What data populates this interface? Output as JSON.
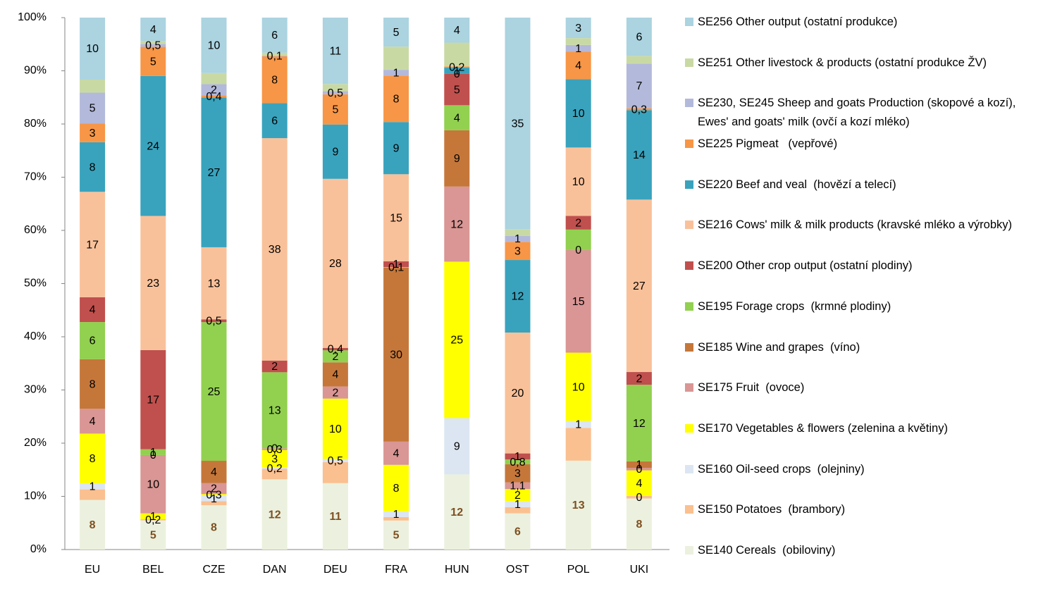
{
  "chart_data": {
    "type": "bar",
    "stacking": "percent",
    "grid": false,
    "categories": [
      "EU",
      "BEL",
      "CZE",
      "DAN",
      "DEU",
      "FRA",
      "HUN",
      "OST",
      "POL",
      "UKI"
    ],
    "ylim": [
      0,
      100
    ],
    "yticks": [
      {
        "value": 0,
        "label": "0%"
      },
      {
        "value": 10,
        "label": "10%"
      },
      {
        "value": 20,
        "label": "20%"
      },
      {
        "value": 30,
        "label": "30%"
      },
      {
        "value": 40,
        "label": "40%"
      },
      {
        "value": 50,
        "label": "50%"
      },
      {
        "value": 60,
        "label": "60%"
      },
      {
        "value": 70,
        "label": "70%"
      },
      {
        "value": 80,
        "label": "80%"
      },
      {
        "value": 90,
        "label": "90%"
      },
      {
        "value": 100,
        "label": "100%"
      }
    ],
    "legend": "right",
    "series": [
      {
        "name": "SE140 Cereals  (obiloviny)",
        "color": "#ebf1de",
        "values": [
          8,
          5,
          8,
          12,
          11,
          5,
          12,
          6,
          13,
          8
        ],
        "value_labels": [
          "8",
          "5",
          "8",
          "12",
          "11",
          "5",
          "12",
          "6",
          "13",
          "8"
        ]
      },
      {
        "name": "SE150 Potatoes  (brambory)",
        "color": "#fac090",
        "values": [
          1.7,
          0.2,
          0.7,
          1.8,
          3.5,
          0.6,
          0,
          1,
          4.8,
          0.4
        ],
        "value_labels": [
          null,
          "0,2",
          null,
          null,
          null,
          null,
          null,
          null,
          null,
          "0"
        ]
      },
      {
        "name": "SE160 Oil-seed crops  (olejniny)",
        "color": "#dce6f2",
        "values": [
          1,
          0,
          1,
          0.2,
          0.5,
          1,
          9,
          1,
          1,
          0
        ],
        "value_labels": [
          "1",
          null,
          "1",
          "0,2",
          "0,5",
          "1",
          "9",
          "1",
          "1",
          null
        ]
      },
      {
        "name": "SE170 Vegetables & flowers (zelenina a květiny)",
        "color": "#ffff00",
        "values": [
          8,
          1,
          0.3,
          3,
          10,
          8,
          25,
          2,
          10,
          4
        ],
        "value_labels": [
          "8",
          "1",
          "0,3",
          "3",
          "10",
          "8",
          "25",
          "2",
          "10",
          "4"
        ]
      },
      {
        "name": "SE175 Fruit  (ovoce)",
        "color": "#d99694",
        "values": [
          4,
          10,
          2,
          0.3,
          2,
          4,
          12,
          1.1,
          15,
          0.4
        ],
        "value_labels": [
          "4",
          "10",
          "2",
          "0,3",
          "2",
          "4",
          "12",
          "1,1",
          "15",
          "0"
        ]
      },
      {
        "name": "SE185 Wine and grapes  (víno)",
        "color": "#c5773a",
        "values": [
          8,
          0,
          4,
          0,
          4,
          30,
          9,
          3,
          0,
          1
        ],
        "value_labels": [
          "8",
          "0",
          "4",
          "0",
          "4",
          "30",
          "9",
          "3",
          "0",
          "1"
        ]
      },
      {
        "name": "SE195 Forage crops  (krmné plodiny)",
        "color": "#92d050",
        "values": [
          6,
          1,
          25,
          13,
          2,
          0.1,
          4,
          0.8,
          3,
          12
        ],
        "value_labels": [
          "6",
          "1",
          "25",
          "13",
          "2",
          "0,1",
          "4",
          "0,8",
          null,
          "12"
        ]
      },
      {
        "name": "SE200 Other crop output (ostatní plodiny)",
        "color": "#c0504d",
        "values": [
          4,
          17,
          0.5,
          2,
          0.4,
          1,
          5,
          1,
          2,
          2
        ],
        "value_labels": [
          "4",
          "17",
          "0,5",
          "2",
          "0,4",
          "1",
          "5",
          "1",
          "2",
          "2"
        ]
      },
      {
        "name": "SE216 Cows' milk & milk products (kravské mléko a výrobky)",
        "color": "#f9c19a",
        "values": [
          17,
          23,
          13,
          38,
          28,
          15,
          0,
          20,
          10,
          27
        ],
        "value_labels": [
          "17",
          "23",
          "13",
          "38",
          "28",
          "15",
          "0",
          "20",
          "10",
          "27"
        ]
      },
      {
        "name": "SE220 Beef and veal  (hovězí a telecí)",
        "color": "#39a3bd",
        "values": [
          8,
          24,
          27,
          6,
          9,
          9,
          1,
          12,
          10,
          14
        ],
        "value_labels": [
          "8",
          "24",
          "27",
          "6",
          "9",
          "9",
          "1",
          "12",
          "10",
          "14"
        ]
      },
      {
        "name": "SE225 Pigmeat   (vepřové)",
        "color": "#f79646",
        "values": [
          3,
          5,
          0.4,
          8,
          5,
          8,
          0.2,
          3,
          4,
          0.3
        ],
        "value_labels": [
          "3",
          "5",
          "0,4",
          "8",
          "5",
          "8",
          "0,2",
          "3",
          "4",
          "0,3"
        ]
      },
      {
        "name": "SE230, SE245 Sheep and goats Production (skopové a kozí), Ewes' and goats' milk (ovčí a kozí mléko)",
        "color": "#b3b9da",
        "values": [
          5,
          0.5,
          2,
          0.1,
          0.5,
          1,
          0,
          1,
          1,
          7
        ],
        "value_labels": [
          "5",
          "0,5",
          "2",
          "0,1",
          "0,5",
          "1",
          null,
          "1",
          "1",
          "7"
        ]
      },
      {
        "name": "SE251 Other livestock & products (ostatní produkce ŽV)",
        "color": "#c9d9a4",
        "values": [
          2.1,
          0.5,
          2,
          0.5,
          1.2,
          4,
          3.8,
          1.1,
          1,
          1.2
        ],
        "value_labels": [
          null,
          null,
          null,
          null,
          null,
          null,
          null,
          null,
          null,
          null
        ]
      },
      {
        "name": "SE256 Other output (ostatní produkce)",
        "color": "#abd3e0",
        "values": [
          10,
          4,
          10,
          6,
          11,
          5,
          4,
          35,
          3,
          6
        ],
        "value_labels": [
          "10",
          "4",
          "10",
          "6",
          "11",
          "5",
          "4",
          "35",
          "3",
          "6"
        ]
      }
    ]
  }
}
